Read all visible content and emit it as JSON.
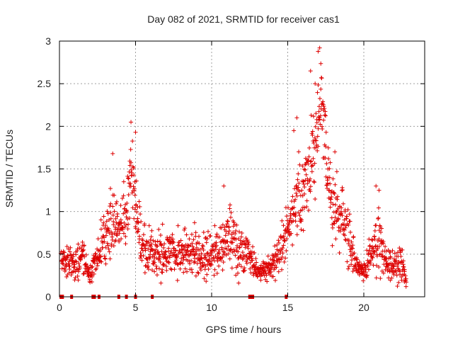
{
  "chart_data": {
    "type": "scatter",
    "title": "Day 082 of 2021, SRMTID for receiver cas1",
    "xlabel": "GPS time / hours",
    "ylabel": "SRMTID / TECUs",
    "xlim": [
      0,
      24
    ],
    "ylim": [
      0,
      3
    ],
    "xticks": [
      0,
      5,
      10,
      15,
      20
    ],
    "xtick_labels": [
      "0",
      "5",
      "10",
      "15",
      "20"
    ],
    "yticks": [
      0,
      0.5,
      1,
      1.5,
      2,
      2.5,
      3
    ],
    "ytick_labels": [
      "0",
      "0.5",
      "1",
      "1.5",
      "2",
      "2.5",
      "3"
    ],
    "grid": true,
    "marker": "+",
    "series": [
      {
        "name": "SRMTID",
        "color": "#dd0000",
        "envelope": {
          "x": [
            0.1,
            0.5,
            1.0,
            1.5,
            2.0,
            2.5,
            3.0,
            3.5,
            4.0,
            4.5,
            4.7,
            5.0,
            5.5,
            6.0,
            7.0,
            8.0,
            9.0,
            10.0,
            10.5,
            11.0,
            11.5,
            12.0,
            12.5,
            13.0,
            13.5,
            14.0,
            14.5,
            15.0,
            15.5,
            16.0,
            16.5,
            17.0,
            17.3,
            17.6,
            18.0,
            18.5,
            19.0,
            19.5,
            20.0,
            20.5,
            21.0,
            21.5,
            22.0,
            22.5,
            22.8
          ],
          "y": [
            0.4,
            0.45,
            0.35,
            0.5,
            0.25,
            0.5,
            0.7,
            0.95,
            0.8,
            1.1,
            1.5,
            1.0,
            0.6,
            0.5,
            0.5,
            0.55,
            0.5,
            0.45,
            0.6,
            0.7,
            0.6,
            0.55,
            0.5,
            0.3,
            0.3,
            0.35,
            0.5,
            0.85,
            1.05,
            1.3,
            1.5,
            2.1,
            2.2,
            1.5,
            1.0,
            0.95,
            0.7,
            0.35,
            0.3,
            0.5,
            0.65,
            0.4,
            0.35,
            0.4,
            0.15
          ],
          "spread": [
            0.12,
            0.15,
            0.15,
            0.2,
            0.1,
            0.2,
            0.3,
            0.35,
            0.3,
            0.35,
            0.4,
            0.3,
            0.25,
            0.25,
            0.25,
            0.25,
            0.25,
            0.25,
            0.3,
            0.3,
            0.3,
            0.25,
            0.2,
            0.1,
            0.1,
            0.15,
            0.2,
            0.3,
            0.35,
            0.5,
            0.5,
            0.6,
            0.55,
            0.45,
            0.35,
            0.35,
            0.3,
            0.1,
            0.1,
            0.25,
            0.3,
            0.15,
            0.15,
            0.2,
            0.05
          ]
        },
        "peaks": [
          [
            3.5,
            1.68
          ],
          [
            4.7,
            2.05
          ],
          [
            5.0,
            1.93
          ],
          [
            10.8,
            1.3
          ],
          [
            15.4,
            1.95
          ],
          [
            15.6,
            2.1
          ],
          [
            16.5,
            2.65
          ],
          [
            16.8,
            2.5
          ],
          [
            17.0,
            2.88
          ],
          [
            17.1,
            2.92
          ],
          [
            18.1,
            1.7
          ],
          [
            20.8,
            1.3
          ],
          [
            21.0,
            1.25
          ]
        ],
        "zero_markers_x": [
          0.1,
          0.2,
          0.8,
          2.2,
          2.3,
          2.6,
          3.9,
          4.4,
          5.0,
          6.1,
          12.5,
          12.6,
          12.7,
          14.9
        ]
      }
    ]
  }
}
